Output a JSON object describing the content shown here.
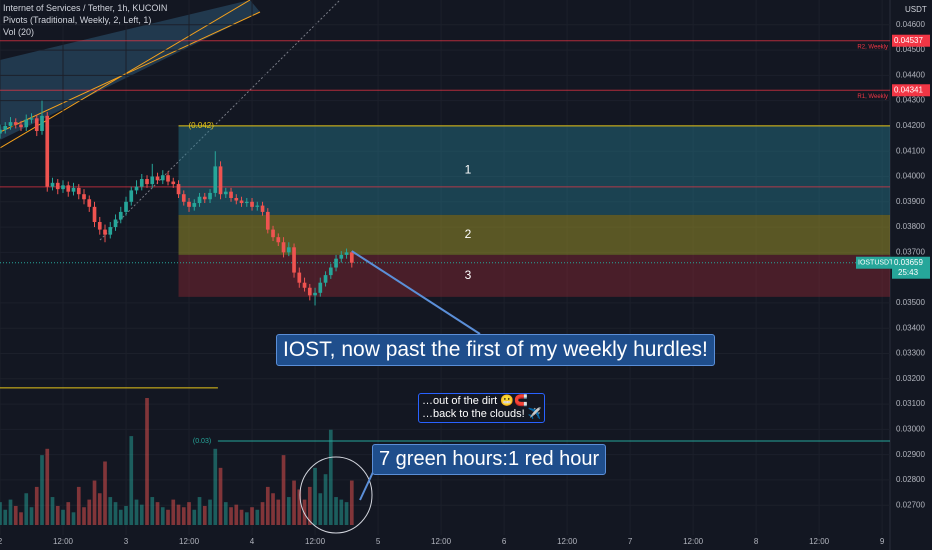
{
  "header": {
    "symbol": "Internet of Services / Tether, 1h, KUCOIN",
    "indicators": [
      "Pivots (Traditional, Weekly, 2, Left, 1)",
      "Vol (20)"
    ],
    "currency": "USDT"
  },
  "chart_data": {
    "type": "candlestick",
    "x": [
      0,
      1,
      2,
      3,
      4,
      5,
      6,
      7,
      8,
      9,
      10,
      11,
      12,
      13,
      14,
      15,
      16,
      17,
      18,
      19,
      20,
      21,
      22,
      23,
      24,
      25,
      26,
      27,
      28,
      29,
      30,
      31,
      32,
      33,
      34,
      35,
      36,
      37,
      38,
      39,
      40,
      41,
      42,
      43,
      44,
      45,
      46,
      47,
      48,
      49,
      50,
      51,
      52,
      53,
      54,
      55,
      56,
      57,
      58,
      59,
      60,
      61,
      62,
      63,
      64,
      65,
      66,
      67
    ],
    "open": [
      0.0417,
      0.04185,
      0.042,
      0.04215,
      0.04205,
      0.04195,
      0.04225,
      0.0423,
      0.0418,
      0.0424,
      0.0396,
      0.03975,
      0.0395,
      0.03965,
      0.0394,
      0.03955,
      0.0393,
      0.0391,
      0.0388,
      0.0382,
      0.0379,
      0.0377,
      0.038,
      0.0383,
      0.0386,
      0.039,
      0.03945,
      0.0396,
      0.0399,
      0.0397,
      0.04,
      0.03985,
      0.04005,
      0.0398,
      0.0397,
      0.0393,
      0.039,
      0.0388,
      0.03895,
      0.0392,
      0.0391,
      0.03935,
      0.0404,
      0.0393,
      0.0394,
      0.03915,
      0.03905,
      0.03895,
      0.039,
      0.0388,
      0.03885,
      0.0386,
      0.0379,
      0.0376,
      0.0374,
      0.037,
      0.0372,
      0.0362,
      0.0358,
      0.0356,
      0.0353,
      0.0354,
      0.0358,
      0.0361,
      0.0364,
      0.03675,
      0.0369,
      0.037
    ],
    "high": [
      0.04205,
      0.04215,
      0.04235,
      0.0423,
      0.0422,
      0.04245,
      0.0425,
      0.04245,
      0.043,
      0.04255,
      0.03995,
      0.0399,
      0.03985,
      0.0398,
      0.03975,
      0.0397,
      0.0395,
      0.03925,
      0.039,
      0.0384,
      0.0381,
      0.0382,
      0.0385,
      0.0388,
      0.0392,
      0.0396,
      0.03985,
      0.0401,
      0.04005,
      0.0405,
      0.04015,
      0.04025,
      0.0402,
      0.03995,
      0.03985,
      0.03945,
      0.03915,
      0.0391,
      0.03935,
      0.03935,
      0.0395,
      0.041,
      0.0406,
      0.03955,
      0.03955,
      0.0393,
      0.0392,
      0.03915,
      0.03915,
      0.039,
      0.039,
      0.03875,
      0.03805,
      0.03775,
      0.0376,
      0.0374,
      0.03735,
      0.0364,
      0.036,
      0.03575,
      0.0356,
      0.036,
      0.03625,
      0.03655,
      0.0369,
      0.03705,
      0.03715,
      0.03705
    ],
    "low": [
      0.0415,
      0.0417,
      0.04185,
      0.0419,
      0.0418,
      0.0418,
      0.0421,
      0.0416,
      0.04165,
      0.0394,
      0.03945,
      0.0393,
      0.03935,
      0.0392,
      0.03925,
      0.0391,
      0.0389,
      0.0386,
      0.038,
      0.0377,
      0.0374,
      0.03755,
      0.03785,
      0.03815,
      0.03845,
      0.03885,
      0.0393,
      0.03945,
      0.03955,
      0.03955,
      0.0397,
      0.0397,
      0.03965,
      0.03955,
      0.03915,
      0.03885,
      0.0386,
      0.03865,
      0.0388,
      0.03895,
      0.03895,
      0.0392,
      0.0391,
      0.03915,
      0.039,
      0.0389,
      0.0388,
      0.0388,
      0.03865,
      0.03865,
      0.03845,
      0.03775,
      0.03745,
      0.03725,
      0.0368,
      0.03685,
      0.036,
      0.0356,
      0.03545,
      0.0351,
      0.0349,
      0.03525,
      0.03565,
      0.03595,
      0.03625,
      0.0366,
      0.03675,
      0.0364
    ],
    "close": [
      0.04185,
      0.042,
      0.04215,
      0.04205,
      0.04195,
      0.04225,
      0.0423,
      0.0418,
      0.0424,
      0.0396,
      0.03975,
      0.0395,
      0.03965,
      0.0394,
      0.03955,
      0.0393,
      0.0391,
      0.0388,
      0.0382,
      0.0379,
      0.0377,
      0.038,
      0.0383,
      0.0386,
      0.039,
      0.03945,
      0.0396,
      0.0399,
      0.0397,
      0.04,
      0.03985,
      0.04005,
      0.0398,
      0.0397,
      0.0393,
      0.039,
      0.0388,
      0.03895,
      0.0392,
      0.0391,
      0.03935,
      0.0404,
      0.0393,
      0.0394,
      0.03915,
      0.03905,
      0.03895,
      0.039,
      0.0388,
      0.03885,
      0.0386,
      0.0379,
      0.0376,
      0.0374,
      0.037,
      0.0372,
      0.0362,
      0.0358,
      0.0356,
      0.0353,
      0.0354,
      0.0358,
      0.0361,
      0.0364,
      0.03675,
      0.0369,
      0.037,
      0.03659
    ],
    "volume": [
      18,
      12,
      20,
      15,
      10,
      25,
      14,
      30,
      55,
      60,
      22,
      15,
      12,
      18,
      10,
      30,
      14,
      20,
      35,
      25,
      50,
      22,
      18,
      12,
      15,
      70,
      20,
      16,
      100,
      22,
      18,
      14,
      12,
      20,
      16,
      14,
      18,
      12,
      22,
      15,
      20,
      60,
      45,
      18,
      14,
      16,
      12,
      10,
      14,
      12,
      18,
      30,
      25,
      20,
      55,
      22,
      35,
      28,
      20,
      30,
      45,
      25,
      40,
      75,
      22,
      20,
      18,
      35
    ],
    "volume_lim": [
      0,
      100
    ],
    "up_color": "#26a69a",
    "down_color": "#ef5350",
    "xlim": [
      0,
      169.5
    ],
    "xticks": [
      {
        "value": 0,
        "label": "2"
      },
      {
        "value": 12,
        "label": "12:00"
      },
      {
        "value": 24,
        "label": "3"
      },
      {
        "value": 36,
        "label": "12:00"
      },
      {
        "value": 48,
        "label": "4"
      },
      {
        "value": 60,
        "label": "12:00"
      },
      {
        "value": 72,
        "label": "5"
      },
      {
        "value": 84,
        "label": "12:00"
      },
      {
        "value": 96,
        "label": "6"
      },
      {
        "value": 108,
        "label": "12:00"
      },
      {
        "value": 120,
        "label": "7"
      },
      {
        "value": 132,
        "label": "12:00"
      },
      {
        "value": 144,
        "label": "8"
      },
      {
        "value": 156,
        "label": "12:00"
      },
      {
        "value": 168,
        "label": "9"
      }
    ],
    "ylim": [
      0.02602,
      0.04698
    ],
    "yticks": [
      {
        "value": 0.046,
        "label": "0.04600"
      },
      {
        "value": 0.045,
        "label": "0.04500"
      },
      {
        "value": 0.044,
        "label": "0.04400"
      },
      {
        "value": 0.043,
        "label": "0.04300"
      },
      {
        "value": 0.042,
        "label": "0.04200"
      },
      {
        "value": 0.041,
        "label": "0.04100"
      },
      {
        "value": 0.04,
        "label": "0.04000"
      },
      {
        "value": 0.039,
        "label": "0.03900"
      },
      {
        "value": 0.038,
        "label": "0.03800"
      },
      {
        "value": 0.037,
        "label": "0.03700"
      },
      {
        "value": 0.035,
        "label": "0.03500"
      },
      {
        "value": 0.034,
        "label": "0.03400"
      },
      {
        "value": 0.033,
        "label": "0.03300"
      },
      {
        "value": 0.032,
        "label": "0.03200"
      },
      {
        "value": 0.031,
        "label": "0.03100"
      },
      {
        "value": 0.03,
        "label": "0.03000"
      },
      {
        "value": 0.029,
        "label": "0.02900"
      },
      {
        "value": 0.028,
        "label": "0.02800"
      },
      {
        "value": 0.027,
        "label": "0.02700"
      }
    ],
    "pivots": [
      {
        "name": "R2, Weekly",
        "value": 0.04537
      },
      {
        "name": "R1, Weekly",
        "value": 0.04341
      },
      {
        "value": 0.03959
      }
    ],
    "pivot_color": "#f23645",
    "current": {
      "symbol": "IOSTUSDT",
      "price": 0.03659,
      "countdown": "25:43"
    },
    "fib": {
      "x_start": 34,
      "level": {
        "value": 0.042,
        "label": "(0.042)"
      },
      "zones": [
        {
          "label": "1",
          "top": 0.042,
          "bottom": 0.03848,
          "color": "rgba(38,120,140,0.45)"
        },
        {
          "label": "2",
          "top": 0.03848,
          "bottom": 0.0369,
          "color": "rgba(150,140,40,0.55)"
        },
        {
          "label": "3",
          "top": 0.0369,
          "bottom": 0.03524,
          "color": "rgba(140,40,50,0.45)"
        }
      ]
    },
    "lower_lines": [
      {
        "value": 0.03164,
        "x_end": 41.5,
        "color": "#e6c619"
      },
      {
        "value": 0.02954,
        "x_start": 41.5,
        "label": "(0.03)",
        "color": "#26a69a"
      }
    ]
  },
  "annotations": {
    "main": "IOST, now past the first of my weekly hurdles!",
    "note": [
      "…out of the dirt 😬🧲",
      "…back to the clouds! ✈️"
    ],
    "hours": "7 green hours:1 red hour"
  }
}
